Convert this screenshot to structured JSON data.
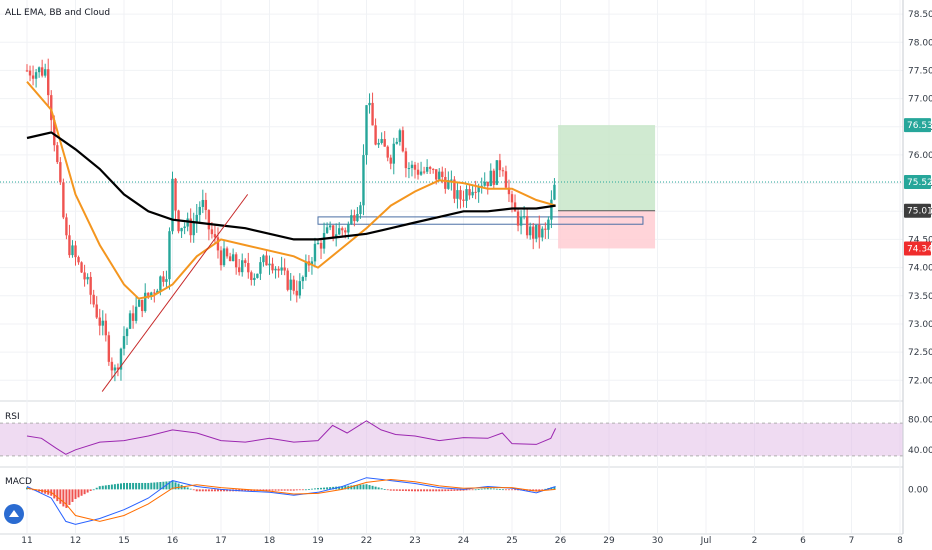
{
  "main": {
    "title": "ALL EMA, BB and Cloud"
  },
  "rsi": {
    "title": "RSI",
    "ticks": [
      "80.00",
      "40.00"
    ],
    "tick_values": [
      80,
      40
    ]
  },
  "macd": {
    "title": "MACD",
    "ticks": [
      "0.00"
    ],
    "tick_values": [
      0
    ]
  },
  "price_tags": [
    {
      "label": "76.53",
      "value": 76.53,
      "color": "#26a69a"
    },
    {
      "label": "75.52",
      "value": 75.52,
      "color": "#26a69a"
    },
    {
      "label": "75.01",
      "value": 75.01,
      "color": "#3d3d3d"
    },
    {
      "label": "74.34",
      "value": 74.34,
      "color": "#ef2c2c"
    }
  ],
  "colors": {
    "up": "#26a69a",
    "down": "#ef5350",
    "ema_orange": "#f4961f",
    "ema_black": "#000000",
    "rsi_line": "#9c27b0",
    "rsi_band": "#e1bee7",
    "macd_line": "#2962ff",
    "signal_line": "#ff6d00",
    "profit_zone": "#c8e6c9",
    "loss_zone": "#ffcdd2"
  },
  "chart_data": {
    "type": "candlestick",
    "title": "ALL EMA, BB and Cloud",
    "x_ticks": [
      "11",
      "12",
      "15",
      "16",
      "17",
      "18",
      "19",
      "22",
      "23",
      "24",
      "25",
      "26",
      "29",
      "30",
      "Jul",
      "2",
      "6",
      "7",
      "8"
    ],
    "y_ticks": [
      72.0,
      72.5,
      73.0,
      73.5,
      74.0,
      74.5,
      75.0,
      75.5,
      76.0,
      76.5,
      77.0,
      77.5,
      78.0,
      78.5
    ],
    "ylim": [
      71.65,
      78.75
    ],
    "close_path": [
      [
        0,
        77.5
      ],
      [
        0.4,
        77.5
      ],
      [
        0.8,
        74.5
      ],
      [
        1.2,
        73.8
      ],
      [
        1.6,
        72.8
      ],
      [
        1.8,
        72.1
      ],
      [
        2.0,
        72.8
      ],
      [
        2.2,
        73.2
      ],
      [
        2.6,
        73.6
      ],
      [
        2.9,
        74.0
      ],
      [
        3.0,
        75.5
      ],
      [
        3.1,
        74.8
      ],
      [
        3.4,
        74.7
      ],
      [
        3.6,
        75.2
      ],
      [
        3.7,
        74.8
      ],
      [
        4.0,
        74.2
      ],
      [
        4.4,
        74.0
      ],
      [
        4.7,
        73.9
      ],
      [
        5.0,
        74.2
      ],
      [
        5.3,
        73.8
      ],
      [
        5.6,
        73.6
      ],
      [
        5.9,
        74.3
      ],
      [
        6.2,
        74.6
      ],
      [
        6.6,
        74.7
      ],
      [
        6.9,
        75.3
      ],
      [
        7.0,
        77.0
      ],
      [
        7.2,
        76.2
      ],
      [
        7.5,
        76.0
      ],
      [
        7.7,
        76.6
      ],
      [
        7.8,
        75.8
      ],
      [
        8.2,
        75.7
      ],
      [
        8.6,
        75.6
      ],
      [
        8.9,
        75.2
      ],
      [
        9.2,
        75.5
      ],
      [
        9.6,
        75.6
      ],
      [
        9.8,
        75.9
      ],
      [
        10.0,
        75.0
      ],
      [
        10.4,
        74.6
      ],
      [
        10.7,
        74.6
      ],
      [
        10.9,
        75.52
      ]
    ],
    "series": [
      {
        "name": "EMA (orange)",
        "points": [
          [
            0,
            77.3
          ],
          [
            0.5,
            76.8
          ],
          [
            1.0,
            75.3
          ],
          [
            1.5,
            74.4
          ],
          [
            2.0,
            73.7
          ],
          [
            2.3,
            73.45
          ],
          [
            2.6,
            73.5
          ],
          [
            3.0,
            73.7
          ],
          [
            3.5,
            74.2
          ],
          [
            4.0,
            74.5
          ],
          [
            4.5,
            74.4
          ],
          [
            5.0,
            74.3
          ],
          [
            5.5,
            74.2
          ],
          [
            6.0,
            74.0
          ],
          [
            6.5,
            74.35
          ],
          [
            7.0,
            74.7
          ],
          [
            7.5,
            75.1
          ],
          [
            8.0,
            75.35
          ],
          [
            8.5,
            75.55
          ],
          [
            9.0,
            75.5
          ],
          [
            9.5,
            75.4
          ],
          [
            10.0,
            75.4
          ],
          [
            10.5,
            75.2
          ],
          [
            10.9,
            75.1
          ]
        ]
      },
      {
        "name": "EMA (black)",
        "points": [
          [
            0,
            76.3
          ],
          [
            0.5,
            76.4
          ],
          [
            1.0,
            76.1
          ],
          [
            1.5,
            75.75
          ],
          [
            2.0,
            75.3
          ],
          [
            2.5,
            75.0
          ],
          [
            3.0,
            74.85
          ],
          [
            3.5,
            74.8
          ],
          [
            4.0,
            74.75
          ],
          [
            4.5,
            74.7
          ],
          [
            5.0,
            74.6
          ],
          [
            5.5,
            74.5
          ],
          [
            6.0,
            74.5
          ],
          [
            6.5,
            74.55
          ],
          [
            7.0,
            74.6
          ],
          [
            7.5,
            74.7
          ],
          [
            8.0,
            74.8
          ],
          [
            8.5,
            74.9
          ],
          [
            9.0,
            75.0
          ],
          [
            9.5,
            75.0
          ],
          [
            10.0,
            75.05
          ],
          [
            10.5,
            75.05
          ],
          [
            10.9,
            75.1
          ]
        ]
      }
    ],
    "trendline": [
      [
        1.55,
        71.8
      ],
      [
        4.55,
        75.3
      ]
    ],
    "zone_box": {
      "x": [
        6.0,
        12.7
      ],
      "y": [
        74.77,
        74.9
      ]
    },
    "position": {
      "entry": 75.01,
      "target": 76.53,
      "stop": 74.34,
      "x": [
        10.95,
        12.95
      ]
    },
    "rsi_range": [
      20,
      100
    ],
    "rsi_points": [
      [
        0,
        58
      ],
      [
        0.3,
        55
      ],
      [
        0.6,
        42
      ],
      [
        0.8,
        34
      ],
      [
        1.0,
        40
      ],
      [
        1.5,
        50
      ],
      [
        2.0,
        52
      ],
      [
        2.5,
        58
      ],
      [
        3.0,
        66
      ],
      [
        3.5,
        62
      ],
      [
        4.0,
        52
      ],
      [
        4.5,
        50
      ],
      [
        5.0,
        55
      ],
      [
        5.5,
        50
      ],
      [
        6.0,
        52
      ],
      [
        6.3,
        72
      ],
      [
        6.6,
        62
      ],
      [
        7.0,
        78
      ],
      [
        7.3,
        66
      ],
      [
        7.6,
        60
      ],
      [
        8.0,
        58
      ],
      [
        8.5,
        52
      ],
      [
        9.0,
        56
      ],
      [
        9.5,
        55
      ],
      [
        9.8,
        62
      ],
      [
        10.0,
        48
      ],
      [
        10.5,
        47
      ],
      [
        10.8,
        55
      ],
      [
        10.9,
        68
      ]
    ],
    "macd_range": [
      -0.75,
      0.35
    ],
    "macd_points": [
      [
        0,
        0.05
      ],
      [
        0.5,
        -0.15
      ],
      [
        0.8,
        -0.55
      ],
      [
        1.0,
        -0.6
      ],
      [
        1.5,
        -0.5
      ],
      [
        2.0,
        -0.35
      ],
      [
        2.5,
        -0.15
      ],
      [
        3.0,
        0.15
      ],
      [
        3.5,
        0.05
      ],
      [
        4.0,
        0.0
      ],
      [
        4.5,
        -0.03
      ],
      [
        5.0,
        -0.05
      ],
      [
        5.5,
        -0.1
      ],
      [
        6.0,
        -0.05
      ],
      [
        6.5,
        0.05
      ],
      [
        7.0,
        0.2
      ],
      [
        7.5,
        0.15
      ],
      [
        8.0,
        0.1
      ],
      [
        8.5,
        0.03
      ],
      [
        9.0,
        0.0
      ],
      [
        9.5,
        0.05
      ],
      [
        10.0,
        0.02
      ],
      [
        10.5,
        -0.06
      ],
      [
        10.9,
        0.05
      ]
    ],
    "signal_points": [
      [
        0,
        0.02
      ],
      [
        0.5,
        -0.05
      ],
      [
        0.8,
        -0.25
      ],
      [
        1.0,
        -0.45
      ],
      [
        1.5,
        -0.55
      ],
      [
        2.0,
        -0.45
      ],
      [
        2.5,
        -0.25
      ],
      [
        3.0,
        0.02
      ],
      [
        3.5,
        0.08
      ],
      [
        4.0,
        0.03
      ],
      [
        4.5,
        0.0
      ],
      [
        5.0,
        -0.03
      ],
      [
        5.5,
        -0.08
      ],
      [
        6.0,
        -0.07
      ],
      [
        6.5,
        0.0
      ],
      [
        7.0,
        0.12
      ],
      [
        7.5,
        0.17
      ],
      [
        8.0,
        0.13
      ],
      [
        8.5,
        0.06
      ],
      [
        9.0,
        0.02
      ],
      [
        9.5,
        0.03
      ],
      [
        10.0,
        0.03
      ],
      [
        10.5,
        -0.03
      ],
      [
        10.9,
        0.0
      ]
    ]
  }
}
